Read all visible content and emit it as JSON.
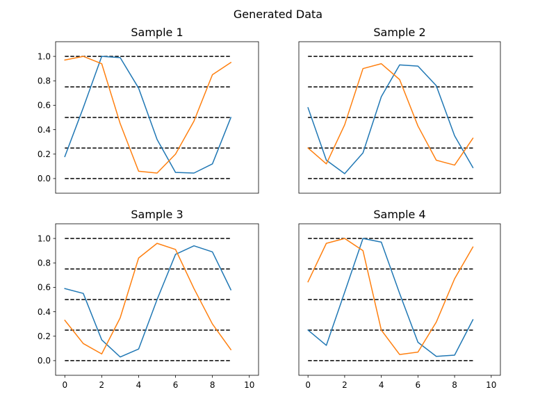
{
  "figure": {
    "title": "Generated Data"
  },
  "colors": {
    "series1": "#1f77b4",
    "series2": "#ff7f0e",
    "reference": "#000000"
  },
  "chart_data": [
    {
      "type": "line",
      "title": "Sample 1",
      "xlabel": "",
      "ylabel": "",
      "xlim": [
        -0.5,
        10.5
      ],
      "ylim": [
        -0.12,
        1.12
      ],
      "xticks": [
        0,
        2,
        4,
        6,
        8,
        10
      ],
      "yticks": [
        0.0,
        0.2,
        0.4,
        0.6,
        0.8,
        1.0
      ],
      "show_xticks": false,
      "show_yticks": true,
      "reference_lines": [
        0,
        0.25,
        0.5,
        0.75,
        1.0
      ],
      "x": [
        0,
        1,
        2,
        3,
        4,
        5,
        6,
        7,
        8,
        9
      ],
      "series": [
        {
          "values": [
            0.18,
            0.58,
            1.0,
            0.99,
            0.74,
            0.32,
            0.05,
            0.045,
            0.12,
            0.5
          ]
        },
        {
          "values": [
            0.97,
            1.0,
            0.94,
            0.45,
            0.06,
            0.045,
            0.2,
            0.47,
            0.85,
            0.95
          ]
        }
      ]
    },
    {
      "type": "line",
      "title": "Sample 2",
      "xlabel": "",
      "ylabel": "",
      "xlim": [
        -0.5,
        10.5
      ],
      "ylim": [
        -0.12,
        1.12
      ],
      "xticks": [
        0,
        2,
        4,
        6,
        8,
        10
      ],
      "yticks": [
        0.0,
        0.2,
        0.4,
        0.6,
        0.8,
        1.0
      ],
      "show_xticks": false,
      "show_yticks": false,
      "reference_lines": [
        0,
        0.25,
        0.5,
        0.75,
        1.0
      ],
      "x": [
        0,
        1,
        2,
        3,
        4,
        5,
        6,
        7,
        8,
        9
      ],
      "series": [
        {
          "values": [
            0.58,
            0.15,
            0.04,
            0.21,
            0.67,
            0.93,
            0.92,
            0.76,
            0.35,
            0.09
          ]
        },
        {
          "values": [
            0.25,
            0.12,
            0.44,
            0.9,
            0.94,
            0.81,
            0.43,
            0.15,
            0.11,
            0.33
          ]
        }
      ]
    },
    {
      "type": "line",
      "title": "Sample 3",
      "xlabel": "",
      "ylabel": "",
      "xlim": [
        -0.5,
        10.5
      ],
      "ylim": [
        -0.12,
        1.12
      ],
      "xticks": [
        0,
        2,
        4,
        6,
        8,
        10
      ],
      "yticks": [
        0.0,
        0.2,
        0.4,
        0.6,
        0.8,
        1.0
      ],
      "show_xticks": true,
      "show_yticks": true,
      "reference_lines": [
        0,
        0.25,
        0.5,
        0.75,
        1.0
      ],
      "x": [
        0,
        1,
        2,
        3,
        4,
        5,
        6,
        7,
        8,
        9
      ],
      "series": [
        {
          "values": [
            0.59,
            0.55,
            0.17,
            0.03,
            0.095,
            0.5,
            0.87,
            0.94,
            0.89,
            0.58
          ]
        },
        {
          "values": [
            0.33,
            0.14,
            0.055,
            0.35,
            0.84,
            0.96,
            0.91,
            0.59,
            0.3,
            0.09
          ]
        }
      ]
    },
    {
      "type": "line",
      "title": "Sample 4",
      "xlabel": "",
      "ylabel": "",
      "xlim": [
        -0.5,
        10.5
      ],
      "ylim": [
        -0.12,
        1.12
      ],
      "xticks": [
        0,
        2,
        4,
        6,
        8,
        10
      ],
      "yticks": [
        0.0,
        0.2,
        0.4,
        0.6,
        0.8,
        1.0
      ],
      "show_xticks": true,
      "show_yticks": false,
      "reference_lines": [
        0,
        0.25,
        0.5,
        0.75,
        1.0
      ],
      "x": [
        0,
        1,
        2,
        3,
        4,
        5,
        6,
        7,
        8,
        9
      ],
      "series": [
        {
          "values": [
            0.25,
            0.125,
            0.56,
            1.0,
            0.97,
            0.55,
            0.15,
            0.035,
            0.045,
            0.335
          ]
        },
        {
          "values": [
            0.645,
            0.96,
            1.0,
            0.9,
            0.25,
            0.05,
            0.07,
            0.315,
            0.67,
            0.93
          ]
        }
      ]
    }
  ]
}
